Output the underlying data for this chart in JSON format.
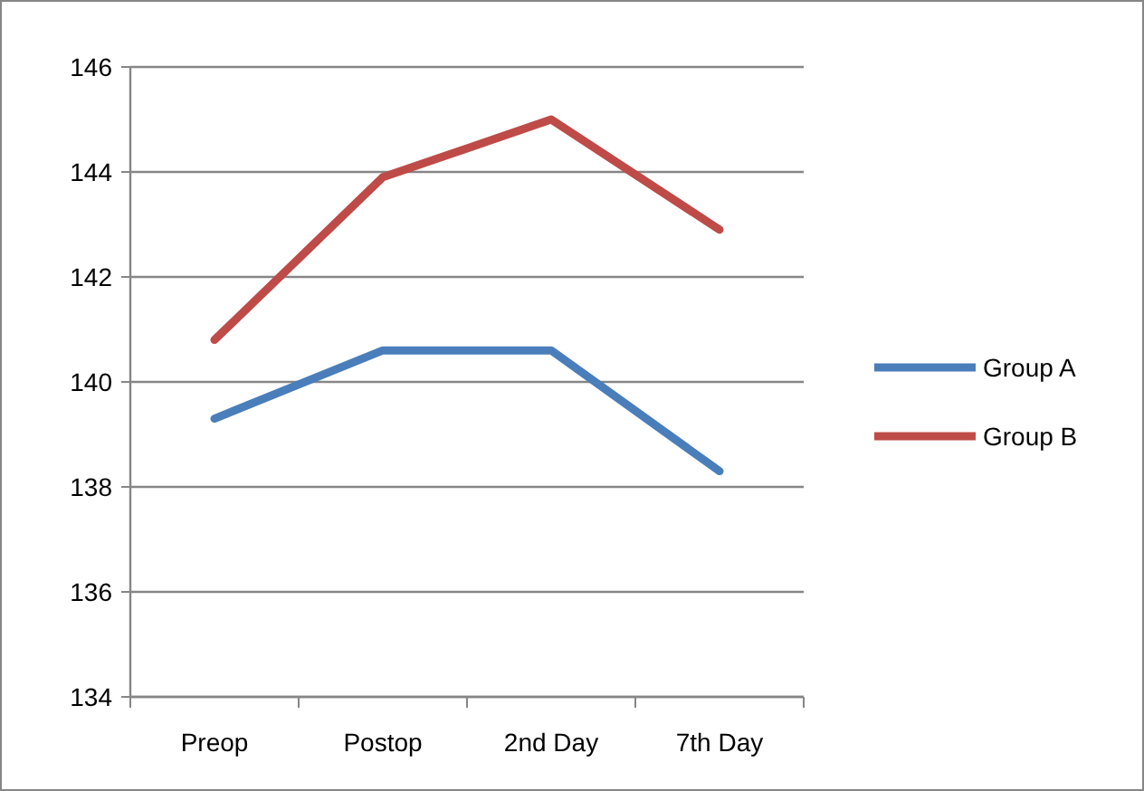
{
  "chart_data": {
    "type": "line",
    "categories": [
      "Preop",
      "Postop",
      "2nd Day",
      "7th Day"
    ],
    "series": [
      {
        "name": "Group A",
        "color": "#4a7ebb",
        "values": [
          139.3,
          140.6,
          140.6,
          138.3
        ]
      },
      {
        "name": "Group B",
        "color": "#be4b48",
        "values": [
          140.8,
          143.9,
          145.0,
          142.9
        ]
      }
    ],
    "ylim": [
      134,
      146
    ],
    "yticks": [
      134,
      136,
      138,
      140,
      142,
      144,
      146
    ],
    "grid": "y",
    "legend": "right",
    "marker": "none",
    "line_style": "solid"
  }
}
